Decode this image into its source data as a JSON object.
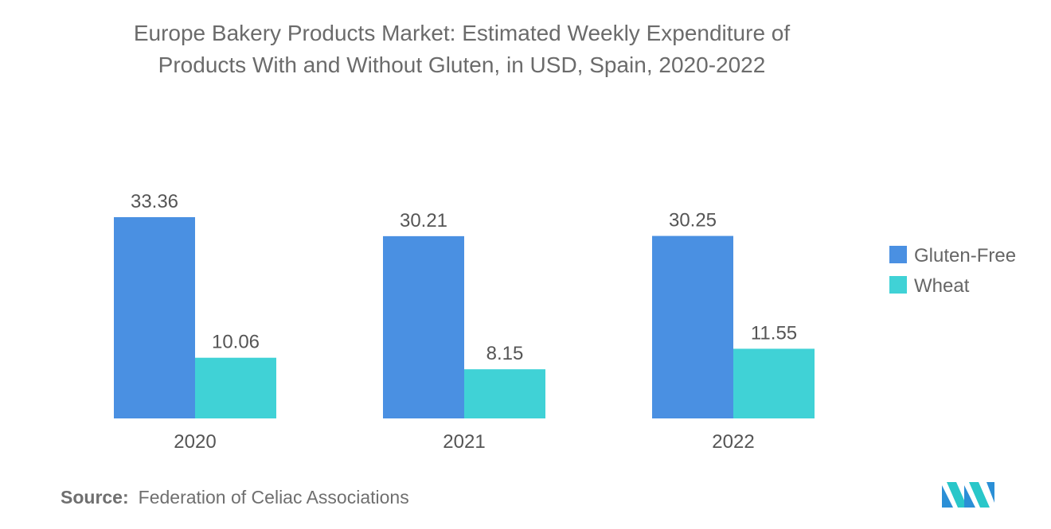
{
  "title_lines": [
    "Europe Bakery Products Market: Estimated Weekly Expenditure of",
    "Products With and Without Gluten, in USD, Spain, 2020-2022"
  ],
  "source": {
    "label": "Source:",
    "text": "Federation of Celiac Associations"
  },
  "logo": {
    "icon": "mordor-intelligence-logo-icon"
  },
  "colors": {
    "gluten_free": "#4a90e2",
    "wheat": "#40d2d6",
    "text": "#555555"
  },
  "chart_data": {
    "type": "bar",
    "title": "Europe Bakery Products Market: Estimated Weekly Expenditure of Products With and Without Gluten, in USD, Spain, 2020-2022",
    "categories": [
      "2020",
      "2021",
      "2022"
    ],
    "series": [
      {
        "name": "Gluten-Free",
        "values": [
          33.36,
          30.21,
          30.25
        ],
        "labels": [
          "33.36",
          "30.21",
          "30.25"
        ]
      },
      {
        "name": "Wheat",
        "values": [
          10.06,
          8.15,
          11.55
        ],
        "labels": [
          "10.06",
          "8.15",
          "11.55"
        ]
      }
    ],
    "xlabel": "",
    "ylabel": "",
    "ylim": [
      0,
      33.36
    ],
    "grid": false,
    "legend_position": "right",
    "data_labels": true
  }
}
